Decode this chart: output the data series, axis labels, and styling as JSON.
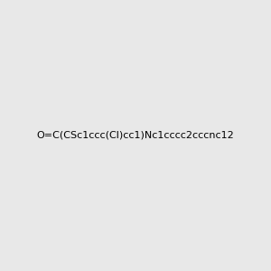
{
  "smiles": "O=C(CSc1ccc(Cl)cc1)Nc1cccc2cccnc12",
  "title": "",
  "background_color": "#e8e8e8",
  "figsize": [
    3.0,
    3.0
  ],
  "dpi": 100,
  "img_size": [
    300,
    300
  ],
  "atom_colors": {
    "O": "#ff0000",
    "N": "#0000ff",
    "S": "#cccc00",
    "Cl": "#00cc00",
    "C": "#000000"
  }
}
